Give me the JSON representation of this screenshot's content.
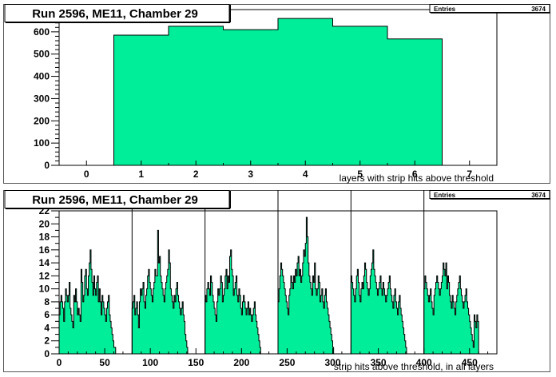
{
  "pads": [
    {
      "title": "Run 2596, ME11, Chamber 29",
      "stats": {
        "label": "Entries",
        "value": "3674"
      }
    },
    {
      "title": "Run 2596, ME11, Chamber 29",
      "stats": {
        "label": "Entries",
        "value": "3674"
      }
    }
  ],
  "colors": {
    "fill": "#00ee99",
    "line": "#000000",
    "frame": "#000000"
  },
  "chart_data": [
    {
      "type": "bar",
      "title": "Run 2596, ME11, Chamber 29",
      "xlabel": "layers with strip hits above threshold",
      "ylabel": "",
      "bin_edges": [
        0.5,
        1.5,
        2.5,
        3.5,
        4.5,
        5.5,
        6.5
      ],
      "values": [
        585,
        625,
        610,
        660,
        625,
        568
      ],
      "xlim": [
        -0.5,
        7.5
      ],
      "ylim": [
        0,
        700
      ],
      "xticks": [
        0,
        1,
        2,
        3,
        4,
        5,
        6,
        7
      ],
      "yticks": [
        0,
        100,
        200,
        300,
        400,
        500,
        600
      ],
      "grid": false,
      "legend": "none",
      "stats": {
        "Entries": 3674
      }
    },
    {
      "type": "bar",
      "title": "Run 2596, ME11, Chamber 29",
      "xlabel": "strip hits above threshold, in all layers",
      "ylabel": "",
      "bin_width": 1,
      "xlim": [
        0,
        480
      ],
      "ylim": [
        0,
        22
      ],
      "xticks": [
        0,
        50,
        100,
        150,
        200,
        250,
        300,
        350,
        400,
        450
      ],
      "yticks": [
        0,
        2,
        4,
        6,
        8,
        10,
        12,
        14,
        16,
        18,
        20,
        22
      ],
      "layer_separators": [
        80,
        160,
        240,
        320,
        400
      ],
      "segments": [
        {
          "start": 1,
          "values": [
            6,
            8,
            9,
            8,
            7,
            5,
            8,
            10,
            9,
            8,
            9,
            11,
            7,
            6,
            5,
            4,
            9,
            8,
            10,
            8,
            6,
            7,
            6,
            5,
            13,
            11,
            8,
            9,
            12,
            13,
            10,
            9,
            12,
            14,
            16,
            13,
            11,
            9,
            12,
            10,
            9,
            11,
            12,
            8,
            10,
            8,
            6,
            9,
            8,
            7,
            6,
            5,
            7,
            8,
            9,
            6,
            5,
            4,
            3,
            2,
            1,
            1,
            0
          ]
        },
        {
          "start": 81,
          "values": [
            7,
            8,
            9,
            6,
            7,
            8,
            6,
            4,
            8,
            10,
            9,
            10,
            11,
            8,
            7,
            9,
            10,
            12,
            13,
            11,
            10,
            9,
            8,
            10,
            11,
            13,
            12,
            12,
            19,
            14,
            15,
            12,
            11,
            10,
            9,
            8,
            10,
            11,
            12,
            13,
            16,
            14,
            10,
            9,
            8,
            7,
            9,
            8,
            10,
            11,
            9,
            8,
            7,
            6,
            7,
            8,
            6,
            5,
            3,
            2,
            1
          ]
        },
        {
          "start": 161,
          "values": [
            9,
            8,
            10,
            11,
            10,
            9,
            12,
            11,
            9,
            8,
            7,
            6,
            5,
            8,
            10,
            9,
            10,
            12,
            11,
            8,
            9,
            10,
            12,
            13,
            10,
            12,
            11,
            15,
            16,
            13,
            12,
            9,
            10,
            11,
            12,
            9,
            8,
            10,
            9,
            7,
            6,
            8,
            9,
            8,
            7,
            6,
            7,
            8,
            6,
            7,
            6,
            5,
            6,
            7,
            8,
            6,
            5,
            4,
            3,
            2,
            1
          ]
        },
        {
          "start": 241,
          "values": [
            8,
            10,
            12,
            14,
            13,
            12,
            11,
            10,
            9,
            8,
            7,
            6,
            9,
            10,
            12,
            11,
            10,
            12,
            11,
            13,
            12,
            14,
            15,
            12,
            13,
            11,
            12,
            14,
            16,
            15,
            17,
            21,
            18,
            14,
            12,
            11,
            10,
            9,
            12,
            11,
            14,
            10,
            9,
            10,
            12,
            11,
            8,
            9,
            10,
            8,
            7,
            9,
            10,
            8,
            7,
            6,
            5,
            4,
            3,
            2,
            1
          ]
        },
        {
          "start": 321,
          "values": [
            12,
            11,
            10,
            9,
            8,
            10,
            12,
            13,
            11,
            9,
            8,
            10,
            11,
            10,
            12,
            14,
            13,
            11,
            10,
            9,
            10,
            12,
            13,
            14,
            16,
            13,
            12,
            11,
            10,
            9,
            10,
            11,
            12,
            10,
            9,
            11,
            10,
            9,
            8,
            9,
            10,
            11,
            12,
            10,
            9,
            8,
            7,
            9,
            10,
            8,
            7,
            6,
            8,
            9,
            7,
            6,
            5,
            4,
            3,
            2,
            1
          ]
        },
        {
          "start": 401,
          "values": [
            10,
            12,
            11,
            10,
            9,
            8,
            9,
            10,
            8,
            7,
            6,
            9,
            10,
            11,
            12,
            11,
            10,
            9,
            10,
            11,
            12,
            14,
            13,
            12,
            14,
            10,
            12,
            11,
            9,
            8,
            7,
            9,
            8,
            7,
            6,
            8,
            9,
            10,
            11,
            12,
            10,
            9,
            8,
            7,
            8,
            9,
            10,
            8,
            7,
            6,
            5,
            4,
            3,
            2,
            1,
            6,
            5,
            4,
            6,
            5
          ]
        }
      ],
      "grid": false,
      "legend": "none",
      "stats": {
        "Entries": 3674
      }
    }
  ]
}
